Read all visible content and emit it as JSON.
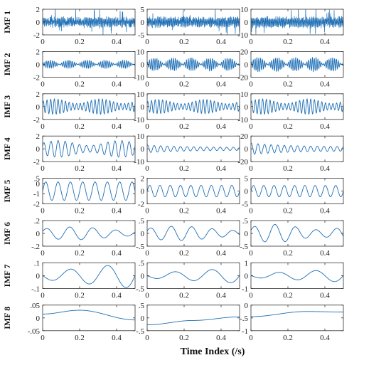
{
  "chart_data": {
    "type": "line",
    "layout": "8 rows x 3 columns of subplots",
    "xlabel": "Time Index (/s)",
    "xlim": [
      0,
      0.5
    ],
    "xticks": [
      0,
      0.2,
      0.4
    ],
    "line_color": "#1f6fb5",
    "rows": [
      {
        "label": "IMF 1",
        "ylims": [
          [
            -2,
            2
          ],
          [
            -5,
            5
          ],
          [
            -10,
            10
          ]
        ],
        "yticks": [
          [
            -2,
            0,
            2
          ],
          [
            -5,
            0,
            5
          ],
          [
            -10,
            0,
            10
          ]
        ],
        "series": [
          {
            "kind": "noise",
            "freq": [
              180
            ],
            "amps": [
              0.55
            ],
            "noise": 0.6,
            "peak": 1.8
          },
          {
            "kind": "noise",
            "freq": [
              180
            ],
            "amps": [
              1.5
            ],
            "noise": 1.4,
            "peak": 4.8
          },
          {
            "kind": "noise",
            "freq": [
              180
            ],
            "amps": [
              3.2
            ],
            "noise": 2.8,
            "peak": 9
          }
        ]
      },
      {
        "label": "IMF 2",
        "ylims": [
          [
            -2,
            2
          ],
          [
            -10,
            10
          ],
          [
            -20,
            20
          ]
        ],
        "yticks": [
          [
            -2,
            0,
            2
          ],
          [
            -10,
            0,
            10
          ],
          [
            -20,
            0,
            20
          ]
        ],
        "series": [
          {
            "kind": "burst",
            "freq": [
              100
            ],
            "amps": [
              0.7
            ],
            "beat": 10
          },
          {
            "kind": "burst",
            "freq": [
              100
            ],
            "amps": [
              5.5
            ],
            "beat": 10
          },
          {
            "kind": "burst",
            "freq": [
              100
            ],
            "amps": [
              12
            ],
            "beat": 10
          }
        ]
      },
      {
        "label": "IMF 3",
        "ylims": [
          [
            -2,
            2
          ],
          [
            -10,
            10
          ],
          [
            -10,
            10
          ]
        ],
        "yticks": [
          [
            -2,
            0,
            2
          ],
          [
            -10,
            0,
            10
          ],
          [
            -10,
            0,
            10
          ]
        ],
        "series": [
          {
            "kind": "mod",
            "freq": [
              50
            ],
            "amps": [
              1.2
            ],
            "beat": 4
          },
          {
            "kind": "mod",
            "freq": [
              50
            ],
            "amps": [
              5.5
            ],
            "beat": 4
          },
          {
            "kind": "mod",
            "freq": [
              50
            ],
            "amps": [
              6
            ],
            "beat": 4
          }
        ]
      },
      {
        "label": "IMF 4",
        "ylims": [
          [
            -2,
            2
          ],
          [
            -10,
            10
          ],
          [
            -20,
            20
          ]
        ],
        "yticks": [
          [
            -2,
            0,
            2
          ],
          [
            -10,
            0,
            10
          ],
          [
            -20,
            0,
            20
          ]
        ],
        "series": [
          {
            "kind": "mod",
            "freq": [
              26
            ],
            "amps": [
              1.3
            ],
            "beat": 3
          },
          {
            "kind": "decay",
            "freq": [
              28
            ],
            "amps": [
              3
            ],
            "decay": 5
          },
          {
            "kind": "decay",
            "freq": [
              28
            ],
            "amps": [
              9
            ],
            "decay": 5
          }
        ]
      },
      {
        "label": "IMF 5",
        "ylims": [
          [
            -2,
            0.5
          ],
          [
            -2,
            2
          ],
          [
            -5,
            5
          ]
        ],
        "yticks": [
          [
            -2,
            -1,
            0,
            0.5
          ],
          [
            -2,
            0,
            2
          ],
          [
            -5,
            0,
            5
          ]
        ],
        "series": [
          {
            "kind": "sine",
            "freq": [
              15
            ],
            "amps": [
              0.9
            ],
            "offset": -0.75
          },
          {
            "kind": "sine",
            "freq": [
              18
            ],
            "amps": [
              0.9
            ],
            "offset": 0
          },
          {
            "kind": "sine",
            "freq": [
              18
            ],
            "amps": [
              2.2
            ],
            "offset": 0
          }
        ]
      },
      {
        "label": "IMF 6",
        "ylims": [
          [
            -0.2,
            0.2
          ],
          [
            -0.5,
            0.5
          ],
          [
            -0.5,
            0.5
          ]
        ],
        "yticks": [
          [
            -0.2,
            0,
            0.2
          ],
          [
            -0.5,
            0,
            0.5
          ],
          [
            -0.5,
            0,
            0.5
          ]
        ],
        "series": [
          {
            "kind": "mod",
            "freq": [
              8
            ],
            "amps": [
              0.1
            ],
            "beat": 1.5
          },
          {
            "kind": "mod",
            "freq": [
              9
            ],
            "amps": [
              0.28
            ],
            "beat": 1.5
          },
          {
            "kind": "mod",
            "freq": [
              9
            ],
            "amps": [
              0.35
            ],
            "beat": 2
          }
        ]
      },
      {
        "label": "IMF 7",
        "ylims": [
          [
            -0.1,
            0.1
          ],
          [
            -0.5,
            0.5
          ],
          [
            -1,
            1
          ]
        ],
        "yticks": [
          [
            -0.1,
            0,
            0.1
          ],
          [
            -0.5,
            0,
            0.5
          ],
          [
            -1,
            0,
            1
          ]
        ],
        "series": [
          {
            "kind": "grow",
            "freq": [
              5
            ],
            "amps": [
              0.1
            ],
            "grow": 1
          },
          {
            "kind": "grow",
            "freq": [
              5
            ],
            "amps": [
              0.3
            ],
            "grow": 1
          },
          {
            "kind": "grow",
            "freq": [
              5
            ],
            "amps": [
              0.5
            ],
            "grow": 1
          }
        ]
      },
      {
        "label": "IMF 8",
        "ylims": [
          [
            -0.05,
            0.05
          ],
          [
            -0.5,
            0.5
          ],
          [
            -1,
            0
          ]
        ],
        "yticks": [
          [
            -0.05,
            0,
            0.05
          ],
          [
            -0.5,
            0,
            0.5
          ],
          [
            -1,
            -0.5,
            0
          ]
        ],
        "series": [
          {
            "kind": "trend",
            "points": [
              [
                0,
                0.015
              ],
              [
                0.2,
                0.03
              ],
              [
                0.5,
                -0.008
              ]
            ]
          },
          {
            "kind": "trend",
            "points": [
              [
                0,
                -0.27
              ],
              [
                0.25,
                -0.1
              ],
              [
                0.5,
                0.04
              ]
            ]
          },
          {
            "kind": "trend",
            "points": [
              [
                0,
                -0.45
              ],
              [
                0.3,
                -0.25
              ],
              [
                0.5,
                -0.27
              ]
            ]
          }
        ]
      }
    ]
  }
}
